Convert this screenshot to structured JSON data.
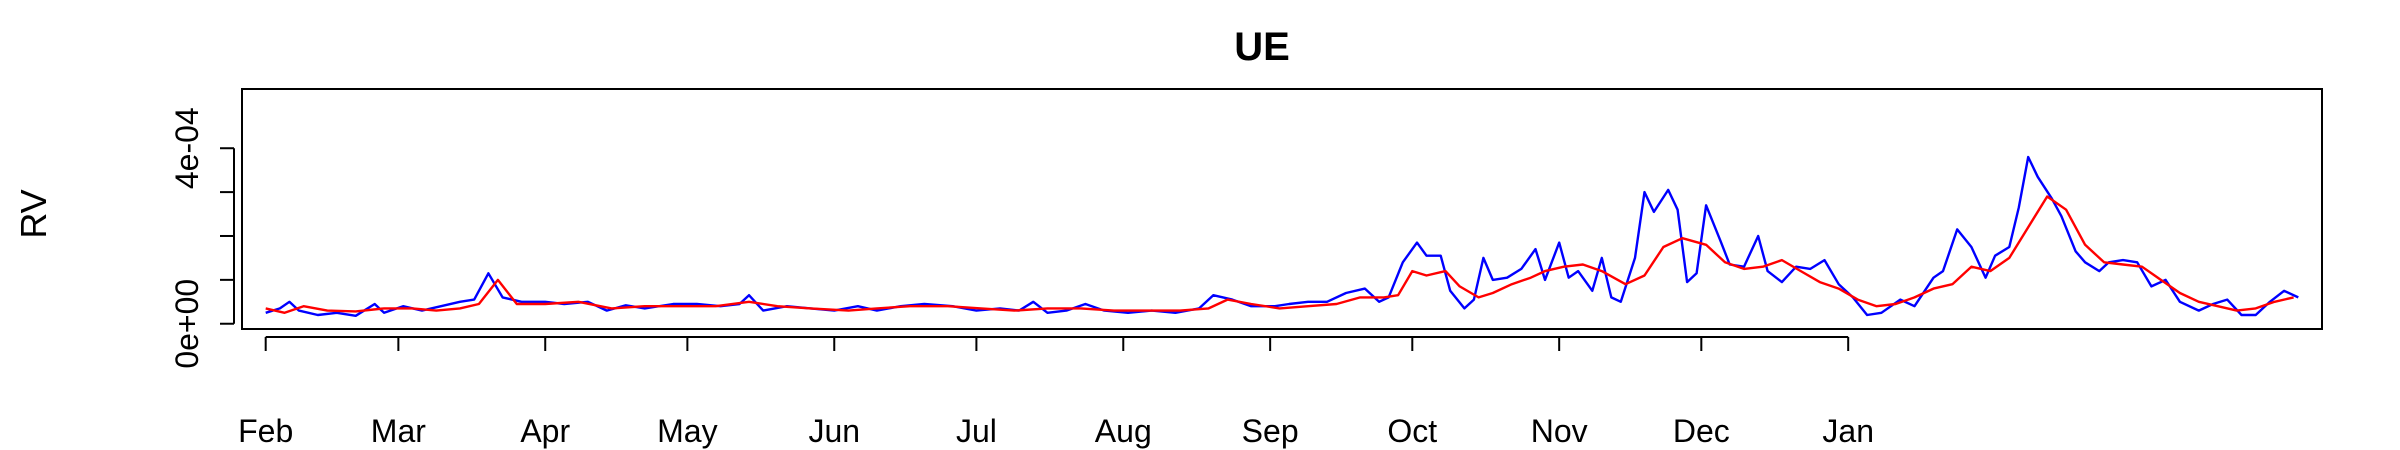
{
  "chart_data": {
    "type": "line",
    "title": "UE",
    "xlabel": "",
    "ylabel": "RV",
    "x_ticks": [
      "Feb",
      "Mar",
      "Apr",
      "May",
      "Jun",
      "Jul",
      "Aug",
      "Sep",
      "Oct",
      "Nov",
      "Dec",
      "Jan"
    ],
    "y_ticks": [
      "0e+00",
      "4e-04"
    ],
    "ylim": [
      -1.2e-05,
      0.000535
    ],
    "grid": false,
    "series": [
      {
        "color": "#0000ff",
        "points": [
          [
            "2023-02-01",
            2.5e-05
          ],
          [
            "2023-02-04",
            3.5e-05
          ],
          [
            "2023-02-06",
            5e-05
          ],
          [
            "2023-02-08",
            3e-05
          ],
          [
            "2023-02-12",
            2e-05
          ],
          [
            "2023-02-16",
            2.5e-05
          ],
          [
            "2023-02-20",
            1.8e-05
          ],
          [
            "2023-02-24",
            4.5e-05
          ],
          [
            "2023-02-26",
            2.5e-05
          ],
          [
            "2023-03-02",
            4e-05
          ],
          [
            "2023-03-06",
            3e-05
          ],
          [
            "2023-03-10",
            4e-05
          ],
          [
            "2023-03-14",
            5e-05
          ],
          [
            "2023-03-17",
            5.5e-05
          ],
          [
            "2023-03-20",
            0.000115
          ],
          [
            "2023-03-23",
            6e-05
          ],
          [
            "2023-03-27",
            5e-05
          ],
          [
            "2023-04-01",
            5e-05
          ],
          [
            "2023-04-05",
            4.5e-05
          ],
          [
            "2023-04-10",
            5e-05
          ],
          [
            "2023-04-14",
            3e-05
          ],
          [
            "2023-04-18",
            4.2e-05
          ],
          [
            "2023-04-22",
            3.5e-05
          ],
          [
            "2023-04-28",
            4.5e-05
          ],
          [
            "2023-05-03",
            4.5e-05
          ],
          [
            "2023-05-08",
            4e-05
          ],
          [
            "2023-05-12",
            4.5e-05
          ],
          [
            "2023-05-14",
            6.5e-05
          ],
          [
            "2023-05-17",
            3e-05
          ],
          [
            "2023-05-22",
            4e-05
          ],
          [
            "2023-05-27",
            3.5e-05
          ],
          [
            "2023-06-01",
            3e-05
          ],
          [
            "2023-06-06",
            4e-05
          ],
          [
            "2023-06-10",
            3e-05
          ],
          [
            "2023-06-15",
            4e-05
          ],
          [
            "2023-06-20",
            4.5e-05
          ],
          [
            "2023-06-26",
            4e-05
          ],
          [
            "2023-07-01",
            3e-05
          ],
          [
            "2023-07-06",
            3.5e-05
          ],
          [
            "2023-07-10",
            3e-05
          ],
          [
            "2023-07-13",
            5e-05
          ],
          [
            "2023-07-16",
            2.5e-05
          ],
          [
            "2023-07-20",
            3e-05
          ],
          [
            "2023-07-24",
            4.5e-05
          ],
          [
            "2023-07-28",
            3e-05
          ],
          [
            "2023-08-02",
            2.5e-05
          ],
          [
            "2023-08-07",
            3e-05
          ],
          [
            "2023-08-12",
            2.5e-05
          ],
          [
            "2023-08-17",
            3.5e-05
          ],
          [
            "2023-08-20",
            6.5e-05
          ],
          [
            "2023-08-24",
            5.5e-05
          ],
          [
            "2023-08-28",
            4e-05
          ],
          [
            "2023-09-02",
            4e-05
          ],
          [
            "2023-09-05",
            4.5e-05
          ],
          [
            "2023-09-09",
            5e-05
          ],
          [
            "2023-09-13",
            5e-05
          ],
          [
            "2023-09-17",
            7e-05
          ],
          [
            "2023-09-21",
            8e-05
          ],
          [
            "2023-09-24",
            5e-05
          ],
          [
            "2023-09-26",
            6e-05
          ],
          [
            "2023-09-29",
            0.00014
          ],
          [
            "2023-10-02",
            0.000185
          ],
          [
            "2023-10-04",
            0.000155
          ],
          [
            "2023-10-07",
            0.000155
          ],
          [
            "2023-10-09",
            7.5e-05
          ],
          [
            "2023-10-12",
            3.5e-05
          ],
          [
            "2023-10-14",
            5.5e-05
          ],
          [
            "2023-10-16",
            0.00015
          ],
          [
            "2023-10-18",
            0.0001
          ],
          [
            "2023-10-21",
            0.000105
          ],
          [
            "2023-10-24",
            0.000125
          ],
          [
            "2023-10-27",
            0.00017
          ],
          [
            "2023-10-29",
            0.0001
          ],
          [
            "2023-11-01",
            0.000185
          ],
          [
            "2023-11-03",
            0.000105
          ],
          [
            "2023-11-05",
            0.00012
          ],
          [
            "2023-11-08",
            7.5e-05
          ],
          [
            "2023-11-10",
            0.00015
          ],
          [
            "2023-11-12",
            6e-05
          ],
          [
            "2023-11-14",
            5e-05
          ],
          [
            "2023-11-17",
            0.00015
          ],
          [
            "2023-11-19",
            0.0003
          ],
          [
            "2023-11-21",
            0.000255
          ],
          [
            "2023-11-24",
            0.000305
          ],
          [
            "2023-11-26",
            0.00026
          ],
          [
            "2023-11-28",
            9.5e-05
          ],
          [
            "2023-11-30",
            0.000115
          ],
          [
            "2023-12-02",
            0.00027
          ],
          [
            "2023-12-05",
            0.00019
          ],
          [
            "2023-12-07",
            0.000135
          ],
          [
            "2023-12-10",
            0.00013
          ],
          [
            "2023-12-13",
            0.0002
          ],
          [
            "2023-12-15",
            0.00012
          ],
          [
            "2023-12-18",
            9.5e-05
          ],
          [
            "2023-12-21",
            0.00013
          ],
          [
            "2023-12-24",
            0.000125
          ],
          [
            "2023-12-27",
            0.000145
          ],
          [
            "2023-12-30",
            9e-05
          ],
          [
            "2024-01-02",
            6e-05
          ],
          [
            "2024-01-05",
            2e-05
          ],
          [
            "2024-01-08",
            2.5e-05
          ],
          [
            "2024-01-12",
            5.5e-05
          ],
          [
            "2024-01-15",
            4e-05
          ],
          [
            "2024-01-19",
            0.000105
          ],
          [
            "2024-01-21",
            0.00012
          ],
          [
            "2024-01-24",
            0.000215
          ],
          [
            "2024-01-27",
            0.000175
          ],
          [
            "2024-01-30",
            0.000105
          ],
          [
            "2024-02-01",
            0.000155
          ],
          [
            "2024-02-04",
            0.000175
          ],
          [
            "2024-02-06",
            0.000265
          ],
          [
            "2024-02-08",
            0.00038
          ],
          [
            "2024-02-10",
            0.000335
          ],
          [
            "2024-02-13",
            0.000285
          ],
          [
            "2024-02-15",
            0.000245
          ],
          [
            "2024-02-18",
            0.000165
          ],
          [
            "2024-02-20",
            0.00014
          ],
          [
            "2024-02-23",
            0.00012
          ],
          [
            "2024-02-25",
            0.00014
          ],
          [
            "2024-02-28",
            0.000145
          ],
          [
            "2024-03-02",
            0.00014
          ],
          [
            "2024-03-05",
            8.5e-05
          ],
          [
            "2024-03-08",
            0.0001
          ],
          [
            "2024-03-11",
            5e-05
          ],
          [
            "2024-03-15",
            3e-05
          ],
          [
            "2024-03-18",
            4.5e-05
          ],
          [
            "2024-03-21",
            5.5e-05
          ],
          [
            "2024-03-24",
            2e-05
          ],
          [
            "2024-03-27",
            2e-05
          ],
          [
            "2024-03-30",
            5e-05
          ],
          [
            "2024-04-02",
            7.5e-05
          ],
          [
            "2024-04-05",
            6e-05
          ]
        ]
      },
      {
        "color": "#ff0000",
        "points": [
          [
            "2023-02-01",
            3.5e-05
          ],
          [
            "2023-02-05",
            2.5e-05
          ],
          [
            "2023-02-09",
            4e-05
          ],
          [
            "2023-02-14",
            3e-05
          ],
          [
            "2023-02-20",
            2.8e-05
          ],
          [
            "2023-02-26",
            3.5e-05
          ],
          [
            "2023-03-04",
            3.5e-05
          ],
          [
            "2023-03-09",
            3e-05
          ],
          [
            "2023-03-14",
            3.5e-05
          ],
          [
            "2023-03-18",
            4.5e-05
          ],
          [
            "2023-03-22",
            0.0001
          ],
          [
            "2023-03-26",
            4.5e-05
          ],
          [
            "2023-04-01",
            4.5e-05
          ],
          [
            "2023-04-08",
            5e-05
          ],
          [
            "2023-04-15",
            3.5e-05
          ],
          [
            "2023-04-22",
            4e-05
          ],
          [
            "2023-04-30",
            4e-05
          ],
          [
            "2023-05-07",
            4e-05
          ],
          [
            "2023-05-14",
            5e-05
          ],
          [
            "2023-05-20",
            4e-05
          ],
          [
            "2023-05-27",
            3.5e-05
          ],
          [
            "2023-06-04",
            3e-05
          ],
          [
            "2023-06-10",
            3.5e-05
          ],
          [
            "2023-06-17",
            4e-05
          ],
          [
            "2023-06-25",
            4e-05
          ],
          [
            "2023-07-02",
            3.5e-05
          ],
          [
            "2023-07-09",
            3e-05
          ],
          [
            "2023-07-16",
            3.5e-05
          ],
          [
            "2023-07-23",
            3.5e-05
          ],
          [
            "2023-07-30",
            3e-05
          ],
          [
            "2023-08-06",
            3e-05
          ],
          [
            "2023-08-13",
            3e-05
          ],
          [
            "2023-08-19",
            3.5e-05
          ],
          [
            "2023-08-23",
            5.5e-05
          ],
          [
            "2023-08-28",
            4.5e-05
          ],
          [
            "2023-09-03",
            3.5e-05
          ],
          [
            "2023-09-09",
            4e-05
          ],
          [
            "2023-09-15",
            4.5e-05
          ],
          [
            "2023-09-20",
            6e-05
          ],
          [
            "2023-09-25",
            6e-05
          ],
          [
            "2023-09-28",
            6.5e-05
          ],
          [
            "2023-10-01",
            0.00012
          ],
          [
            "2023-10-04",
            0.00011
          ],
          [
            "2023-10-08",
            0.00012
          ],
          [
            "2023-10-11",
            8.5e-05
          ],
          [
            "2023-10-15",
            6e-05
          ],
          [
            "2023-10-18",
            7e-05
          ],
          [
            "2023-10-22",
            9e-05
          ],
          [
            "2023-10-26",
            0.000105
          ],
          [
            "2023-10-29",
            0.00012
          ],
          [
            "2023-11-02",
            0.00013
          ],
          [
            "2023-11-06",
            0.000135
          ],
          [
            "2023-11-10",
            0.00012
          ],
          [
            "2023-11-15",
            9e-05
          ],
          [
            "2023-11-19",
            0.00011
          ],
          [
            "2023-11-23",
            0.000175
          ],
          [
            "2023-11-27",
            0.000195
          ],
          [
            "2023-12-02",
            0.00018
          ],
          [
            "2023-12-06",
            0.00014
          ],
          [
            "2023-12-10",
            0.000125
          ],
          [
            "2023-12-14",
            0.00013
          ],
          [
            "2023-12-18",
            0.000145
          ],
          [
            "2023-12-22",
            0.00012
          ],
          [
            "2023-12-26",
            9.5e-05
          ],
          [
            "2023-12-30",
            8e-05
          ],
          [
            "2024-01-03",
            5.5e-05
          ],
          [
            "2024-01-07",
            4e-05
          ],
          [
            "2024-01-11",
            4.5e-05
          ],
          [
            "2024-01-15",
            6e-05
          ],
          [
            "2024-01-19",
            8e-05
          ],
          [
            "2024-01-23",
            9e-05
          ],
          [
            "2024-01-27",
            0.00013
          ],
          [
            "2024-01-31",
            0.00012
          ],
          [
            "2024-02-04",
            0.00015
          ],
          [
            "2024-02-08",
            0.00022
          ],
          [
            "2024-02-12",
            0.00029
          ],
          [
            "2024-02-16",
            0.00026
          ],
          [
            "2024-02-20",
            0.00018
          ],
          [
            "2024-02-24",
            0.00014
          ],
          [
            "2024-02-28",
            0.000135
          ],
          [
            "2024-03-03",
            0.00013
          ],
          [
            "2024-03-07",
            0.0001
          ],
          [
            "2024-03-11",
            7e-05
          ],
          [
            "2024-03-15",
            5e-05
          ],
          [
            "2024-03-19",
            4e-05
          ],
          [
            "2024-03-23",
            3e-05
          ],
          [
            "2024-03-27",
            3.5e-05
          ],
          [
            "2024-03-31",
            5e-05
          ],
          [
            "2024-04-04",
            6e-05
          ]
        ]
      }
    ]
  }
}
